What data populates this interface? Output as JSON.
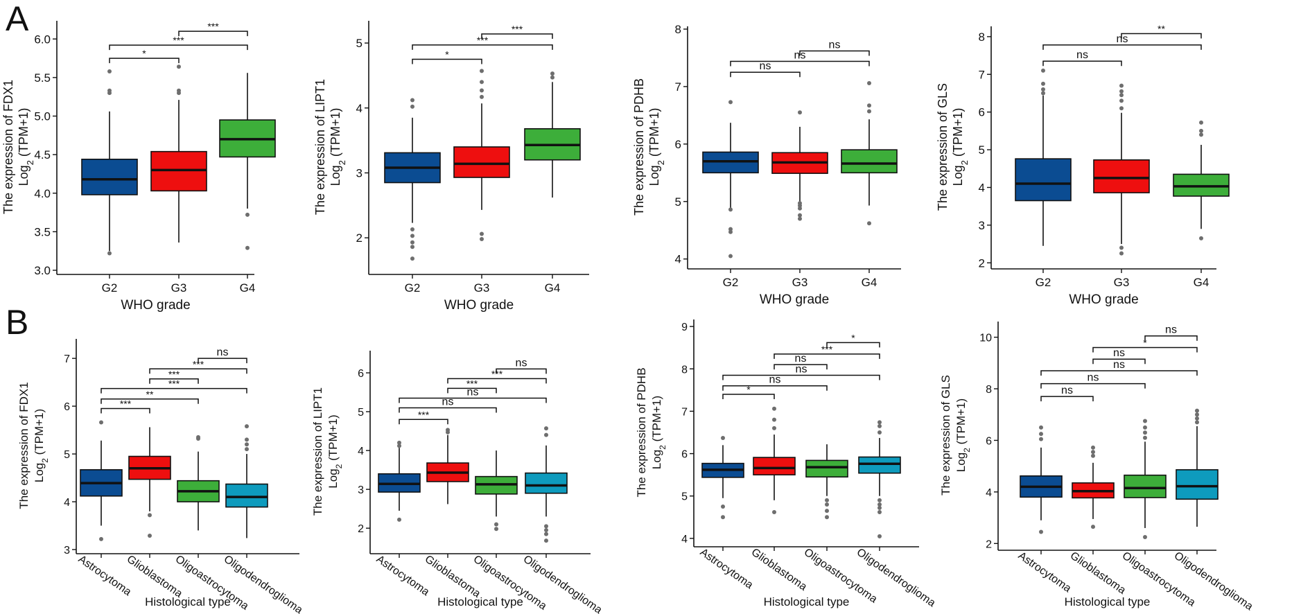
{
  "figure": {
    "panel_labels": [
      "A",
      "B"
    ],
    "colors": {
      "G2": "#0b4c92",
      "G3": "#ee0f0f",
      "G4": "#3dae3a",
      "Astrocytoma": "#0b4c92",
      "Glioblastoma": "#ee0f0f",
      "Oligoastrocytoma": "#3dae3a",
      "Oligodendroglioma": "#0e9bbd",
      "outlier": "#6e6e6e"
    }
  },
  "chart_data": [
    {
      "id": "A1",
      "row": "A",
      "type": "box",
      "gene": "FDX1",
      "ylabel_line1": "The expression of FDX1",
      "ylabel_line2": "TPM+1",
      "xlabel": "WHO grade",
      "categories": [
        "G2",
        "G3",
        "G4"
      ],
      "ylim": [
        3.0,
        6.2
      ],
      "yticks": [
        3.0,
        3.5,
        4.0,
        4.5,
        5.0,
        5.5,
        6.0
      ],
      "tick_labels": [
        "3.0",
        "3.5",
        "4.0",
        "4.5",
        "5.0",
        "5.5",
        "6.0"
      ],
      "boxes": [
        {
          "category": "G2",
          "whisker_low": 3.25,
          "q1": 3.98,
          "median": 4.18,
          "q3": 4.44,
          "whisker_high": 5.06,
          "outliers": [
            3.22,
            5.3,
            5.33,
            5.58
          ]
        },
        {
          "category": "G3",
          "whisker_low": 3.36,
          "q1": 4.03,
          "median": 4.3,
          "q3": 4.54,
          "whisker_high": 5.21,
          "outliers": [
            5.3,
            5.33,
            5.64
          ]
        },
        {
          "category": "G4",
          "whisker_low": 3.8,
          "q1": 4.47,
          "median": 4.7,
          "q3": 4.95,
          "whisker_high": 5.56,
          "outliers": [
            3.29,
            3.72
          ]
        }
      ],
      "brackets": [
        {
          "from": "G2",
          "to": "G3",
          "y": 5.75,
          "label": "*"
        },
        {
          "from": "G2",
          "to": "G4",
          "y": 5.92,
          "label": "***"
        },
        {
          "from": "G3",
          "to": "G4",
          "y": 6.1,
          "label": "***"
        }
      ]
    },
    {
      "id": "A2",
      "row": "A",
      "type": "box",
      "gene": "LIPT1",
      "ylabel_line1": "The expression of LIPT1",
      "ylabel_line2": "TPM+1",
      "xlabel": "WHO grade",
      "categories": [
        "G2",
        "G3",
        "G4"
      ],
      "ylim": [
        1.5,
        5.3
      ],
      "yticks": [
        2,
        3,
        4,
        5
      ],
      "tick_labels": [
        "2",
        "3",
        "4",
        "5"
      ],
      "boxes": [
        {
          "category": "G2",
          "whisker_low": 2.23,
          "q1": 2.85,
          "median": 3.08,
          "q3": 3.31,
          "whisker_high": 3.85,
          "outliers": [
            1.68,
            1.86,
            1.93,
            2.03,
            2.13,
            4.02,
            4.12
          ]
        },
        {
          "category": "G3",
          "whisker_low": 2.43,
          "q1": 2.93,
          "median": 3.14,
          "q3": 3.4,
          "whisker_high": 4.07,
          "outliers": [
            1.98,
            2.06,
            4.17,
            4.27,
            4.4,
            4.57
          ]
        },
        {
          "category": "G4",
          "whisker_low": 2.62,
          "q1": 3.2,
          "median": 3.43,
          "q3": 3.68,
          "whisker_high": 4.4,
          "outliers": [
            4.47,
            4.53
          ]
        }
      ],
      "brackets": [
        {
          "from": "G2",
          "to": "G3",
          "y": 4.75,
          "label": "*"
        },
        {
          "from": "G2",
          "to": "G4",
          "y": 4.97,
          "label": "***"
        },
        {
          "from": "G3",
          "to": "G4",
          "y": 5.14,
          "label": "***"
        }
      ]
    },
    {
      "id": "A3",
      "row": "A",
      "type": "box",
      "gene": "PDHB",
      "ylabel_line1": "The expression of PDHB",
      "ylabel_line2": "TPM+1",
      "xlabel": "WHO grade",
      "categories": [
        "G2",
        "G3",
        "G4"
      ],
      "ylim": [
        3.9,
        8.0
      ],
      "yticks": [
        4,
        5,
        6,
        7,
        8
      ],
      "tick_labels": [
        "4",
        "5",
        "6",
        "7",
        "8"
      ],
      "boxes": [
        {
          "category": "G2",
          "whisker_low": 4.88,
          "q1": 5.5,
          "median": 5.7,
          "q3": 5.86,
          "whisker_high": 6.37,
          "outliers": [
            4.05,
            4.47,
            4.52,
            4.86,
            6.73
          ]
        },
        {
          "category": "G3",
          "whisker_low": 4.99,
          "q1": 5.49,
          "median": 5.68,
          "q3": 5.85,
          "whisker_high": 6.3,
          "outliers": [
            4.7,
            4.76,
            4.88,
            4.93,
            4.97,
            6.55
          ]
        },
        {
          "category": "G4",
          "whisker_low": 4.93,
          "q1": 5.5,
          "median": 5.66,
          "q3": 5.9,
          "whisker_high": 6.43,
          "outliers": [
            4.62,
            6.57,
            6.67,
            7.06
          ]
        }
      ],
      "brackets": [
        {
          "from": "G2",
          "to": "G3",
          "y": 7.25,
          "label": "ns"
        },
        {
          "from": "G2",
          "to": "G4",
          "y": 7.44,
          "label": "ns"
        },
        {
          "from": "G3",
          "to": "G4",
          "y": 7.62,
          "label": "ns"
        }
      ]
    },
    {
      "id": "A4",
      "row": "A",
      "type": "box",
      "gene": "GLS",
      "ylabel_line1": "The expression of GLS",
      "ylabel_line2": "TPM+1",
      "xlabel": "WHO grade",
      "categories": [
        "G2",
        "G3",
        "G4"
      ],
      "ylim": [
        1.95,
        8.2
      ],
      "yticks": [
        2,
        3,
        4,
        5,
        6,
        7,
        8
      ],
      "tick_labels": [
        "2",
        "3",
        "4",
        "5",
        "6",
        "7",
        "8"
      ],
      "boxes": [
        {
          "category": "G2",
          "whisker_low": 2.45,
          "q1": 3.65,
          "median": 4.1,
          "q3": 4.76,
          "whisker_high": 6.44,
          "outliers": [
            6.5,
            6.6,
            6.75,
            7.1
          ]
        },
        {
          "category": "G3",
          "whisker_low": 2.5,
          "q1": 3.86,
          "median": 4.25,
          "q3": 4.73,
          "whisker_high": 5.98,
          "outliers": [
            2.25,
            2.4,
            6.1,
            6.3,
            6.45,
            6.55,
            6.7
          ]
        },
        {
          "category": "G4",
          "whisker_low": 2.9,
          "q1": 3.77,
          "median": 4.03,
          "q3": 4.35,
          "whisker_high": 5.13,
          "outliers": [
            2.65,
            5.4,
            5.5,
            5.72
          ]
        }
      ],
      "brackets": [
        {
          "from": "G2",
          "to": "G3",
          "y": 7.35,
          "label": "ns"
        },
        {
          "from": "G2",
          "to": "G4",
          "y": 7.78,
          "label": "ns"
        },
        {
          "from": "G3",
          "to": "G4",
          "y": 8.08,
          "label": "**"
        }
      ]
    },
    {
      "id": "B1",
      "row": "B",
      "type": "box",
      "gene": "FDX1",
      "ylabel_line1": "The expression of FDX1",
      "ylabel_line2": "TPM+1",
      "xlabel": "Histological type",
      "categories": [
        "Astrocytoma",
        "Glioblastoma",
        "Oligoastrocytoma",
        "Oligodendroglioma"
      ],
      "ylim": [
        3.0,
        7.35
      ],
      "yticks": [
        3,
        4,
        5,
        6,
        7
      ],
      "tick_labels": [
        "3",
        "4",
        "5",
        "6",
        "7"
      ],
      "boxes": [
        {
          "category": "Astrocytoma",
          "whisker_low": 3.5,
          "q1": 4.12,
          "median": 4.39,
          "q3": 4.67,
          "whisker_high": 5.28,
          "outliers": [
            3.22,
            5.66
          ]
        },
        {
          "category": "Glioblastoma",
          "whisker_low": 3.8,
          "q1": 4.47,
          "median": 4.7,
          "q3": 4.95,
          "whisker_high": 5.56,
          "outliers": [
            3.29,
            3.72
          ]
        },
        {
          "category": "Oligoastrocytoma",
          "whisker_low": 3.4,
          "q1": 4.0,
          "median": 4.22,
          "q3": 4.44,
          "whisker_high": 5.05,
          "outliers": [
            5.32,
            5.35
          ]
        },
        {
          "category": "Oligodendroglioma",
          "whisker_low": 3.24,
          "q1": 3.89,
          "median": 4.1,
          "q3": 4.37,
          "whisker_high": 5.0,
          "outliers": [
            5.1,
            5.2,
            5.3,
            5.58
          ]
        }
      ],
      "brackets": [
        {
          "from": "Astrocytoma",
          "to": "Glioblastoma",
          "y": 5.95,
          "label": "***"
        },
        {
          "from": "Astrocytoma",
          "to": "Oligoastrocytoma",
          "y": 6.15,
          "label": "**"
        },
        {
          "from": "Astrocytoma",
          "to": "Oligodendroglioma",
          "y": 6.37,
          "label": "***"
        },
        {
          "from": "Glioblastoma",
          "to": "Oligoastrocytoma",
          "y": 6.57,
          "label": "***"
        },
        {
          "from": "Glioblastoma",
          "to": "Oligodendroglioma",
          "y": 6.78,
          "label": "***"
        },
        {
          "from": "Oligoastrocytoma",
          "to": "Oligodendroglioma",
          "y": 7.0,
          "label": "ns"
        }
      ]
    },
    {
      "id": "B2",
      "row": "B",
      "type": "box",
      "gene": "LIPT1",
      "ylabel_line1": "The expression of LIPT1",
      "ylabel_line2": "TPM+1",
      "xlabel": "Histological type",
      "categories": [
        "Astrocytoma",
        "Glioblastoma",
        "Oligoastrocytoma",
        "Oligodendroglioma"
      ],
      "ylim": [
        1.45,
        6.5
      ],
      "yticks": [
        2,
        3,
        4,
        5,
        6
      ],
      "tick_labels": [
        "2",
        "3",
        "4",
        "5",
        "6"
      ],
      "boxes": [
        {
          "category": "Astrocytoma",
          "whisker_low": 2.45,
          "q1": 2.93,
          "median": 3.14,
          "q3": 3.4,
          "whisker_high": 4.07,
          "outliers": [
            2.22,
            4.12,
            4.2
          ]
        },
        {
          "category": "Glioblastoma",
          "whisker_low": 2.62,
          "q1": 3.2,
          "median": 3.43,
          "q3": 3.68,
          "whisker_high": 4.4,
          "outliers": [
            4.47,
            4.53
          ]
        },
        {
          "category": "Oligoastrocytoma",
          "whisker_low": 2.3,
          "q1": 2.88,
          "median": 3.13,
          "q3": 3.33,
          "whisker_high": 4.0,
          "outliers": [
            1.98,
            2.1
          ]
        },
        {
          "category": "Oligodendroglioma",
          "whisker_low": 2.3,
          "q1": 2.9,
          "median": 3.1,
          "q3": 3.42,
          "whisker_high": 4.13,
          "outliers": [
            1.68,
            1.85,
            1.95,
            2.05,
            4.4,
            4.57
          ]
        }
      ],
      "brackets": [
        {
          "from": "Astrocytoma",
          "to": "Glioblastoma",
          "y": 4.8,
          "label": "***"
        },
        {
          "from": "Astrocytoma",
          "to": "Oligoastrocytoma",
          "y": 5.1,
          "label": "ns"
        },
        {
          "from": "Astrocytoma",
          "to": "Oligodendroglioma",
          "y": 5.35,
          "label": "ns"
        },
        {
          "from": "Glioblastoma",
          "to": "Oligoastrocytoma",
          "y": 5.6,
          "label": "***"
        },
        {
          "from": "Glioblastoma",
          "to": "Oligodendroglioma",
          "y": 5.85,
          "label": "***"
        },
        {
          "from": "Oligoastrocytoma",
          "to": "Oligodendroglioma",
          "y": 6.1,
          "label": "ns"
        }
      ]
    },
    {
      "id": "B3",
      "row": "B",
      "type": "box",
      "gene": "PDHB",
      "ylabel_line1": "The expression of PDHB",
      "ylabel_line2": "TPM+1",
      "xlabel": "Histological type",
      "categories": [
        "Astrocytoma",
        "Glioblastoma",
        "Oligoastrocytoma",
        "Oligodendroglioma"
      ],
      "ylim": [
        3.9,
        9.1
      ],
      "yticks": [
        4,
        5,
        6,
        7,
        8,
        9
      ],
      "tick_labels": [
        "4",
        "5",
        "6",
        "7",
        "8",
        "9"
      ],
      "boxes": [
        {
          "category": "Astrocytoma",
          "whisker_low": 4.95,
          "q1": 5.44,
          "median": 5.62,
          "q3": 5.77,
          "whisker_high": 6.2,
          "outliers": [
            4.5,
            4.75,
            6.37
          ]
        },
        {
          "category": "Glioblastoma",
          "whisker_low": 4.9,
          "q1": 5.5,
          "median": 5.66,
          "q3": 5.91,
          "whisker_high": 6.45,
          "outliers": [
            4.62,
            6.6,
            6.8,
            7.06
          ]
        },
        {
          "category": "Oligoastrocytoma",
          "whisker_low": 5.0,
          "q1": 5.45,
          "median": 5.68,
          "q3": 5.84,
          "whisker_high": 6.22,
          "outliers": [
            4.5,
            4.65,
            4.8,
            4.9
          ]
        },
        {
          "category": "Oligodendroglioma",
          "whisker_low": 5.0,
          "q1": 5.54,
          "median": 5.76,
          "q3": 5.92,
          "whisker_high": 6.37,
          "outliers": [
            4.05,
            4.62,
            4.72,
            4.8,
            4.9,
            6.5,
            6.65,
            6.74
          ]
        }
      ],
      "brackets": [
        {
          "from": "Astrocytoma",
          "to": "Glioblastoma",
          "y": 7.4,
          "label": "*"
        },
        {
          "from": "Astrocytoma",
          "to": "Oligoastrocytoma",
          "y": 7.6,
          "label": "ns"
        },
        {
          "from": "Astrocytoma",
          "to": "Oligodendroglioma",
          "y": 7.85,
          "label": "ns"
        },
        {
          "from": "Glioblastoma",
          "to": "Oligoastrocytoma",
          "y": 8.1,
          "label": "ns"
        },
        {
          "from": "Glioblastoma",
          "to": "Oligodendroglioma",
          "y": 8.35,
          "label": "***"
        },
        {
          "from": "Oligoastrocytoma",
          "to": "Oligodendroglioma",
          "y": 8.62,
          "label": "*"
        }
      ]
    },
    {
      "id": "B4",
      "row": "B",
      "type": "box",
      "gene": "GLS",
      "ylabel_line1": "The expression of GLS",
      "ylabel_line2": "TPM+1",
      "xlabel": "Histological type",
      "categories": [
        "Astrocytoma",
        "Glioblastoma",
        "Oligoastrocytoma",
        "Oligodendroglioma"
      ],
      "ylim": [
        1.9,
        10.5
      ],
      "yticks": [
        2,
        4,
        6,
        8,
        10
      ],
      "tick_labels": [
        "2",
        "4",
        "6",
        "8",
        "10"
      ],
      "boxes": [
        {
          "category": "Astrocytoma",
          "whisker_low": 2.9,
          "q1": 3.8,
          "median": 4.2,
          "q3": 4.62,
          "whisker_high": 5.72,
          "outliers": [
            2.45,
            6.05,
            6.25,
            6.5
          ]
        },
        {
          "category": "Glioblastoma",
          "whisker_low": 2.95,
          "q1": 3.77,
          "median": 4.03,
          "q3": 4.35,
          "whisker_high": 5.13,
          "outliers": [
            2.65,
            5.4,
            5.55,
            5.72
          ]
        },
        {
          "category": "Oligoastrocytoma",
          "whisker_low": 2.6,
          "q1": 3.78,
          "median": 4.15,
          "q3": 4.65,
          "whisker_high": 5.95,
          "outliers": [
            2.25,
            6.1,
            6.3,
            6.5,
            6.75
          ]
        },
        {
          "category": "Oligodendroglioma",
          "whisker_low": 2.65,
          "q1": 3.72,
          "median": 4.22,
          "q3": 4.86,
          "whisker_high": 6.55,
          "outliers": [
            6.7,
            6.85,
            7.0,
            7.15
          ]
        }
      ],
      "brackets": [
        {
          "from": "Astrocytoma",
          "to": "Glioblastoma",
          "y": 7.7,
          "label": "ns"
        },
        {
          "from": "Astrocytoma",
          "to": "Oligoastrocytoma",
          "y": 8.2,
          "label": "ns"
        },
        {
          "from": "Astrocytoma",
          "to": "Oligodendroglioma",
          "y": 8.7,
          "label": "ns"
        },
        {
          "from": "Glioblastoma",
          "to": "Oligoastrocytoma",
          "y": 9.15,
          "label": "ns"
        },
        {
          "from": "Glioblastoma",
          "to": "Oligodendroglioma",
          "y": 9.6,
          "label": "*"
        },
        {
          "from": "Oligoastrocytoma",
          "to": "Oligodendroglioma",
          "y": 10.05,
          "label": "ns"
        }
      ]
    }
  ]
}
